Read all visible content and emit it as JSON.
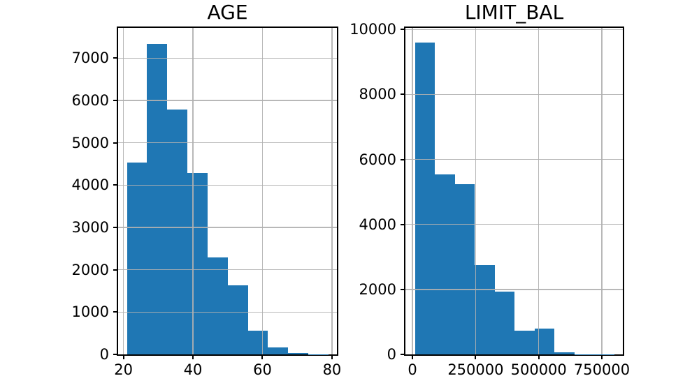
{
  "figure": {
    "background_color": "#ffffff",
    "bar_color": "#1f77b4",
    "grid_color": "#b0b0b0",
    "axis_color": "#000000",
    "text_color": "#000000"
  },
  "chart_data": [
    {
      "type": "bar",
      "subtype": "histogram",
      "title": "AGE",
      "xlabel": "",
      "ylabel": "",
      "bin_edges": [
        21.0,
        26.8,
        32.6,
        38.4,
        44.2,
        50.0,
        55.8,
        61.6,
        67.4,
        73.2,
        79.0
      ],
      "values": [
        4530,
        7330,
        5790,
        4290,
        2290,
        1640,
        560,
        160,
        35,
        8
      ],
      "xlim": [
        18.47,
        81.42
      ],
      "ylim": [
        0,
        7715
      ],
      "xticks": {
        "values": [
          20,
          40,
          60,
          80
        ],
        "labels": [
          "20",
          "40",
          "60",
          "80"
        ]
      },
      "yticks": {
        "values": [
          0,
          1000,
          2000,
          3000,
          4000,
          5000,
          6000,
          7000
        ],
        "labels": [
          "0",
          "1000",
          "2000",
          "3000",
          "4000",
          "5000",
          "6000",
          "7000"
        ]
      },
      "grid": true,
      "legend_position": "none"
    },
    {
      "type": "bar",
      "subtype": "histogram",
      "title": "LIMIT_BAL",
      "xlabel": "",
      "ylabel": "",
      "bin_edges": [
        10000,
        89000,
        168000,
        247000,
        326000,
        405000,
        484000,
        563000,
        642000,
        721000,
        800000
      ],
      "values": [
        9590,
        5550,
        5230,
        2750,
        1930,
        740,
        790,
        70,
        10,
        5
      ],
      "xlim": [
        -28000,
        833000
      ],
      "ylim": [
        0,
        10050
      ],
      "xticks": {
        "values": [
          0,
          250000,
          500000,
          750000
        ],
        "labels": [
          "0",
          "250000",
          "500000",
          "750000"
        ]
      },
      "yticks": {
        "values": [
          0,
          2000,
          4000,
          6000,
          8000,
          10000
        ],
        "labels": [
          "0",
          "2000",
          "4000",
          "6000",
          "8000",
          "10000"
        ]
      },
      "grid": true,
      "legend_position": "none"
    }
  ]
}
